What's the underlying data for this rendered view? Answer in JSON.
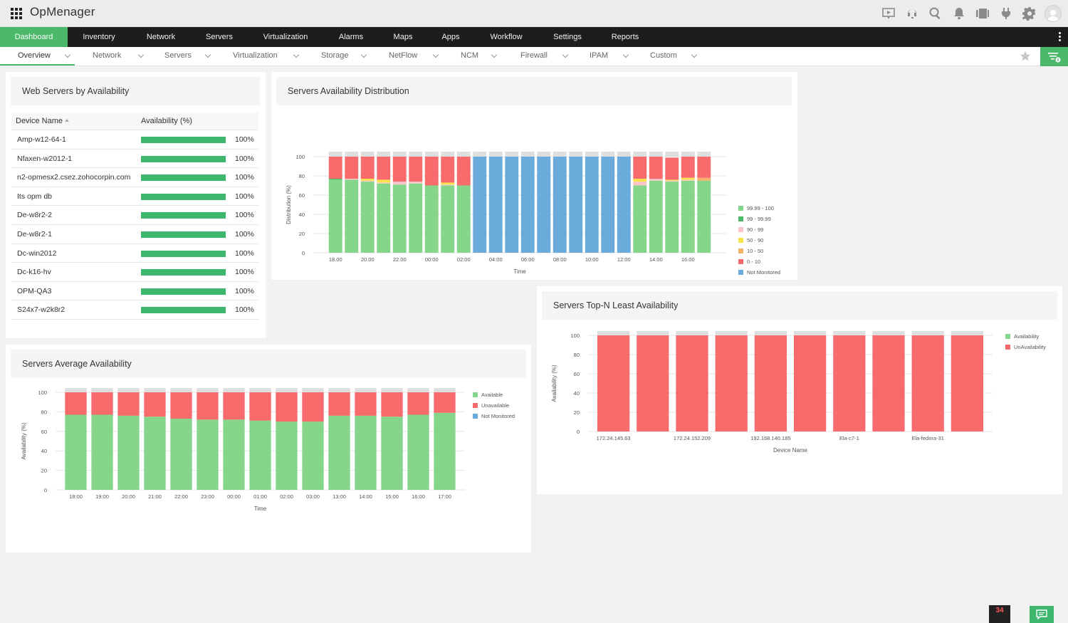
{
  "app": {
    "title": "OpMenager"
  },
  "top_icons": [
    "presentation-icon",
    "support-icon",
    "search-icon",
    "bell-icon",
    "device-icon",
    "plug-icon",
    "gear-icon",
    "user-icon"
  ],
  "nav": {
    "items": [
      {
        "label": "Dashboard",
        "active": true
      },
      {
        "label": "Inventory"
      },
      {
        "label": "Network"
      },
      {
        "label": "Servers"
      },
      {
        "label": "Virtualization"
      },
      {
        "label": "Alarms"
      },
      {
        "label": "Maps"
      },
      {
        "label": "Apps"
      },
      {
        "label": "Workflow"
      },
      {
        "label": "Settings"
      },
      {
        "label": "Reports"
      }
    ]
  },
  "subnav": {
    "items": [
      {
        "label": "Overview",
        "active": true
      },
      {
        "label": "Network"
      },
      {
        "label": "Servers"
      },
      {
        "label": "Virtualization"
      },
      {
        "label": "Storage"
      },
      {
        "label": "NetFlow"
      },
      {
        "label": "NCM"
      },
      {
        "label": "Firewall"
      },
      {
        "label": "IPAM"
      },
      {
        "label": "Custom"
      }
    ]
  },
  "colors": {
    "accent": "#4bb86a",
    "available": "#85d68b",
    "unavailable": "#f76b6d",
    "not_monitored": "#6aabdb",
    "range_99_90": "#f8c5c8",
    "range_90_50": "#f9e34b",
    "range_10_50": "#f5b36a",
    "cap": "#dedede"
  },
  "web_servers": {
    "title": "Web Servers by Availability",
    "col_device": "Device Name",
    "col_availability": "Availability (%)",
    "rows": [
      {
        "name": "Amp-w12-64-1",
        "value": "100%",
        "fraction": 1
      },
      {
        "name": "Nfaxen-w2012-1",
        "value": "100%",
        "fraction": 1
      },
      {
        "name": "n2-opmesx2.csez.zohocorpin.com",
        "value": "100%",
        "fraction": 1
      },
      {
        "name": "Its opm db",
        "value": "100%",
        "fraction": 1
      },
      {
        "name": "De-w8r2-2",
        "value": "100%",
        "fraction": 1
      },
      {
        "name": "De-w8r2-1",
        "value": "100%",
        "fraction": 1
      },
      {
        "name": "Dc-win2012",
        "value": "100%",
        "fraction": 1
      },
      {
        "name": "Dc-k16-hv",
        "value": "100%",
        "fraction": 1
      },
      {
        "name": "OPM-QA3",
        "value": "100%",
        "fraction": 1
      },
      {
        "name": "S24x7-w2k8r2",
        "value": "100%",
        "fraction": 1
      }
    ]
  },
  "widgets": {
    "distribution_title": "Servers Availability Distribution",
    "average_title": "Servers Average Availability",
    "topn_title": "Servers Top-N Least Availability"
  },
  "status": {
    "alarm_count": "34"
  },
  "chart_data": [
    {
      "id": "distribution",
      "type": "bar",
      "stacked": true,
      "title": "Servers Availability Distribution",
      "xlabel": "Time",
      "ylabel": "Distribution (%)",
      "ylim": [
        0,
        100
      ],
      "yticks": [
        0,
        20,
        40,
        60,
        80,
        100
      ],
      "grid": true,
      "legend": "right",
      "tick_labels": [
        "18.00",
        "20.00",
        "22.00",
        "00:00",
        "02:00",
        "04:00",
        "06:00",
        "08:00",
        "10:00",
        "12:00",
        "14.00",
        "16.00"
      ],
      "tick_every": 2,
      "series": [
        {
          "name": "99.99 - 100",
          "color": "#85d68b",
          "values": [
            76,
            76,
            74,
            72,
            71,
            72,
            70,
            70,
            70,
            0,
            0,
            0,
            0,
            0,
            0,
            0,
            0,
            0,
            0,
            70,
            75,
            74,
            75,
            75
          ]
        },
        {
          "name": "99 - 99.99",
          "color": "#4bb86a",
          "values": [
            1,
            0,
            0,
            0,
            0,
            0,
            0,
            0,
            0,
            0,
            0,
            0,
            0,
            0,
            0,
            0,
            0,
            0,
            0,
            0,
            0,
            0,
            0,
            0
          ]
        },
        {
          "name": "90 - 99",
          "color": "#f8c5c8",
          "values": [
            0,
            1,
            1,
            1,
            3,
            2,
            0,
            1,
            0,
            0,
            0,
            0,
            0,
            0,
            0,
            0,
            0,
            0,
            0,
            4,
            2,
            1,
            1,
            0
          ]
        },
        {
          "name": "50 - 90",
          "color": "#f9e34b",
          "values": [
            0,
            0,
            2,
            3,
            0,
            0,
            0,
            2,
            0,
            0,
            0,
            0,
            0,
            0,
            0,
            0,
            0,
            0,
            0,
            3,
            0,
            1,
            2,
            0
          ]
        },
        {
          "name": "10 - 50",
          "color": "#f5b36a",
          "values": [
            0,
            0,
            0,
            0,
            0,
            0,
            0,
            0,
            0,
            0,
            0,
            0,
            0,
            0,
            0,
            0,
            0,
            0,
            0,
            0,
            0,
            0,
            0,
            3
          ]
        },
        {
          "name": "0 - 10",
          "color": "#f76b6d",
          "values": [
            23,
            23,
            23,
            24,
            26,
            26,
            30,
            27,
            30,
            0,
            0,
            0,
            0,
            0,
            0,
            0,
            0,
            0,
            0,
            23,
            23,
            23,
            22,
            22
          ]
        },
        {
          "name": "Not Monitored",
          "color": "#6aabdb",
          "values": [
            0,
            0,
            0,
            0,
            0,
            0,
            0,
            0,
            0,
            100,
            100,
            100,
            100,
            100,
            100,
            100,
            100,
            100,
            100,
            0,
            0,
            0,
            0,
            0
          ]
        }
      ]
    },
    {
      "id": "average",
      "type": "bar",
      "stacked": true,
      "title": "Servers Average Availability",
      "xlabel": "Time",
      "ylabel": "Availability (%)",
      "ylim": [
        0,
        100
      ],
      "yticks": [
        0,
        20,
        40,
        60,
        80,
        100
      ],
      "ytick_labels": [
        "0",
        "20",
        "40",
        "60",
        "80",
        "100"
      ],
      "grid": true,
      "legend": "right",
      "categories": [
        "18:00",
        "19:00",
        "20:00",
        "21:00",
        "22:00",
        "23:00",
        "00:00",
        "01:00",
        "02:00",
        "03:00",
        "13:00",
        "14:00",
        "15:00",
        "16:00",
        "17:00"
      ],
      "series": [
        {
          "name": "Available",
          "color": "#85d68b",
          "values": [
            77,
            77,
            76,
            75,
            73,
            72,
            72,
            71,
            70,
            70,
            76,
            76,
            75,
            77,
            79
          ]
        },
        {
          "name": "Unavailable",
          "color": "#f76b6d",
          "values": [
            23,
            23,
            24,
            25,
            27,
            28,
            28,
            29,
            30,
            30,
            24,
            24,
            25,
            23,
            21
          ]
        },
        {
          "name": "Not Monitored",
          "color": "#6aabdb",
          "values": [
            0,
            0,
            0,
            0,
            0,
            0,
            0,
            0,
            0,
            0,
            0,
            0,
            0,
            0,
            0
          ]
        }
      ]
    },
    {
      "id": "topn",
      "type": "bar",
      "stacked": true,
      "title": "Servers Top-N Least Availability",
      "xlabel": "Device Name",
      "ylabel": "Availability (%)",
      "ylim": [
        0,
        100
      ],
      "yticks": [
        0,
        20,
        40,
        60,
        80,
        100
      ],
      "ytick_labels": [
        "0",
        "20",
        "40",
        "60",
        "80",
        "100"
      ],
      "grid": true,
      "legend": "right",
      "tick_labels": [
        "172.24.145.63",
        "172.24.152.209",
        "192.168.140.185",
        "Ela-c7-1",
        "Ela-fedora-31"
      ],
      "tick_every": 2,
      "series": [
        {
          "name": "Availability",
          "color": "#85d68b",
          "values": [
            0,
            0,
            0,
            0,
            0,
            0,
            0,
            0,
            0,
            0
          ]
        },
        {
          "name": "UnAvailability",
          "color": "#f76b6d",
          "values": [
            100,
            100,
            100,
            100,
            100,
            100,
            100,
            100,
            100,
            100
          ]
        }
      ]
    }
  ]
}
